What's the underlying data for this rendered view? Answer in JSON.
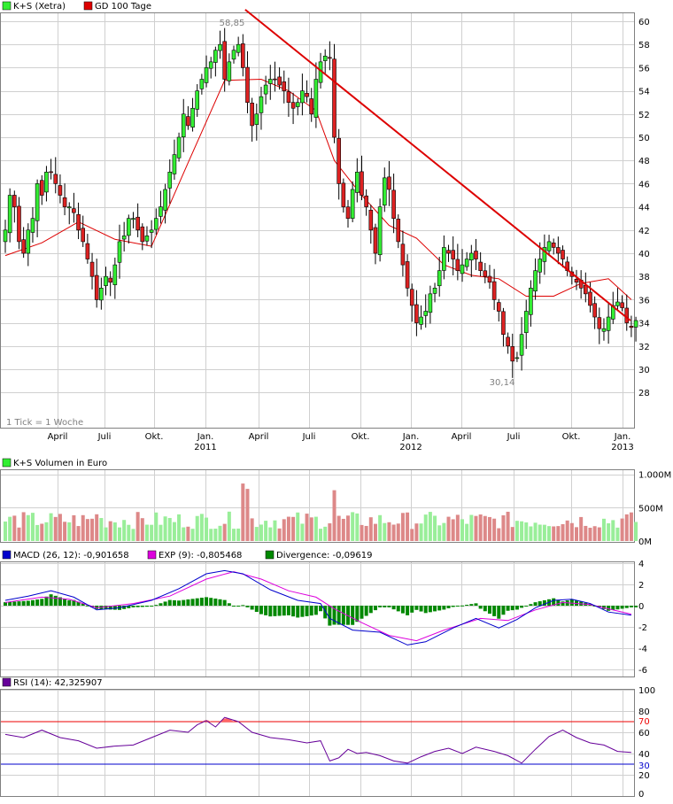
{
  "colors": {
    "candle_up": "#33ee33",
    "candle_down": "#dd2222",
    "wick": "#000000",
    "sma": "#dd0000",
    "trendline": "#dd0000",
    "vol_up": "#99ee99",
    "vol_down": "#dd8888",
    "macd": "#0000cc",
    "signal": "#dd00dd",
    "divergence": "#008800",
    "rsi": "#660099",
    "rsi_upper": "#ee0000",
    "rsi_lower": "#0000cc",
    "rsi_overbought_fill": "#ff6666",
    "grid": "#d0d0d0"
  },
  "x_axis": {
    "months": [
      {
        "label": "April",
        "year": ""
      },
      {
        "label": "Juli",
        "year": ""
      },
      {
        "label": "Okt.",
        "year": ""
      },
      {
        "label": "Jan.",
        "year": "2011"
      },
      {
        "label": "April",
        "year": ""
      },
      {
        "label": "Juli",
        "year": ""
      },
      {
        "label": "Okt.",
        "year": ""
      },
      {
        "label": "Jan.",
        "year": "2012"
      },
      {
        "label": "April",
        "year": ""
      },
      {
        "label": "Juli",
        "year": ""
      },
      {
        "label": "Okt.",
        "year": ""
      },
      {
        "label": "Jan.",
        "year": "2013"
      }
    ]
  },
  "price_panel": {
    "legend": [
      {
        "color": "#33ee33",
        "label": "K+S (Xetra)"
      },
      {
        "color": "#dd0000",
        "label": "GD 100 Tage"
      }
    ],
    "note": "1 Tick = 1 Woche",
    "high_label": "58,85",
    "low_label": "30,14",
    "ticks": [
      "60",
      "58",
      "56",
      "54",
      "52",
      "50",
      "48",
      "46",
      "44",
      "42",
      "40",
      "38",
      "36",
      "34",
      "32",
      "30",
      "28"
    ]
  },
  "volume_panel": {
    "legend": [
      {
        "color": "#33ee33",
        "label": "K+S Volumen in Euro"
      }
    ],
    "ticks": [
      "1.000M",
      "500M",
      "0M"
    ]
  },
  "macd_panel": {
    "legend": [
      {
        "color": "#0000cc",
        "label": "MACD (26, 12): -0,901658"
      },
      {
        "color": "#dd00dd",
        "label": "EXP (9): -0,805468"
      },
      {
        "color": "#008800",
        "label": "Divergence: -0,09619"
      }
    ],
    "ticks": [
      "4",
      "2",
      "0",
      "-2",
      "-4",
      "-6"
    ]
  },
  "rsi_panel": {
    "legend": [
      {
        "color": "#660099",
        "label": "RSI (14): 42,325907"
      }
    ],
    "ticks": [
      "100",
      "80",
      "70",
      "60",
      "40",
      "30",
      "20",
      "0"
    ],
    "overbought": 70,
    "oversold": 30
  },
  "chart_data": {
    "type": "candlestick",
    "interval": "weekly",
    "x_range": [
      "2010-03",
      "2013-01"
    ],
    "price": {
      "ylim": [
        26.8,
        61
      ],
      "closes": [
        42,
        45,
        44,
        41,
        40,
        42,
        43,
        46,
        45,
        47,
        47,
        46,
        45,
        44,
        44,
        43.5,
        42,
        41,
        39.5,
        38,
        36,
        37,
        38,
        37.5,
        39,
        41,
        41.5,
        43,
        43,
        42,
        41,
        41.5,
        42,
        43,
        44,
        45.5,
        47,
        48.5,
        50,
        52,
        51,
        52.5,
        54,
        55,
        56,
        56.5,
        57.5,
        58,
        55,
        56.5,
        57.5,
        58,
        56,
        53,
        51,
        52,
        53.5,
        54.5,
        55,
        55,
        54.5,
        54,
        53,
        52.5,
        53,
        54,
        53.5,
        52,
        55,
        56.5,
        57,
        56.8,
        50,
        46,
        44,
        43,
        45.5,
        47,
        45,
        44,
        42,
        40,
        44,
        46.5,
        45.5,
        43,
        41,
        39,
        37,
        35.5,
        34,
        34.5,
        35,
        36.5,
        37,
        38.5,
        40.5,
        40,
        39.5,
        38.5,
        39,
        39.5,
        40,
        39.5,
        38.5,
        38,
        37.5,
        36,
        35,
        33,
        32,
        30.7,
        31,
        33,
        35,
        37,
        38.5,
        39.5,
        40.5,
        41,
        40.5,
        40,
        39.5,
        38.5,
        38,
        37.5,
        37,
        36.5,
        35.5,
        34.5,
        33.5,
        33.5,
        34.5,
        35.5,
        35.8,
        35.3,
        34,
        33.6,
        34.2
      ],
      "sma100_points": [
        [
          0,
          39.8
        ],
        [
          8,
          40.9
        ],
        [
          16,
          42.7
        ],
        [
          24,
          41.2
        ],
        [
          32,
          40.6
        ],
        [
          40,
          47.8
        ],
        [
          48,
          54.9
        ],
        [
          56,
          55
        ],
        [
          62,
          54
        ],
        [
          68,
          52.3
        ],
        [
          72,
          48
        ],
        [
          78,
          45
        ],
        [
          84,
          42.4
        ],
        [
          90,
          41.3
        ],
        [
          96,
          39
        ],
        [
          102,
          38.1
        ],
        [
          108,
          37.8
        ],
        [
          114,
          36.3
        ],
        [
          120,
          36.3
        ],
        [
          126,
          37.4
        ],
        [
          132,
          37.8
        ],
        [
          137,
          36
        ]
      ],
      "trendline_points": [
        [
          52.5,
          61
        ],
        [
          67.5,
          57
        ],
        [
          136.8,
          34.2
        ]
      ],
      "high_annotation": 58.85,
      "low_annotation": 30.14
    },
    "volume": {
      "ylim": [
        0,
        1000
      ],
      "unit": "Mio. Euro"
    },
    "macd": {
      "ylim": [
        -6.5,
        4
      ],
      "macd_points": [
        [
          0,
          0.5
        ],
        [
          5,
          0.9
        ],
        [
          10,
          1.4
        ],
        [
          15,
          0.8
        ],
        [
          20,
          -0.4
        ],
        [
          25,
          -0.2
        ],
        [
          32,
          0.5
        ],
        [
          38,
          1.6
        ],
        [
          44,
          3
        ],
        [
          48,
          3.3
        ],
        [
          52,
          3
        ],
        [
          58,
          1.5
        ],
        [
          64,
          0.5
        ],
        [
          69,
          0.2
        ],
        [
          71,
          -1.2
        ],
        [
          76,
          -2.3
        ],
        [
          82,
          -2.5
        ],
        [
          88,
          -3.7
        ],
        [
          92,
          -3.4
        ],
        [
          98,
          -2.1
        ],
        [
          103,
          -1.2
        ],
        [
          108,
          -2.1
        ],
        [
          112,
          -1.3
        ],
        [
          116,
          -0.2
        ],
        [
          120,
          0.5
        ],
        [
          124,
          0.6
        ],
        [
          128,
          0.2
        ],
        [
          132,
          -0.6
        ],
        [
          137,
          -0.9
        ]
      ],
      "signal_points": [
        [
          0,
          0.3
        ],
        [
          8,
          0.8
        ],
        [
          14,
          0.6
        ],
        [
          20,
          -0.2
        ],
        [
          28,
          0.2
        ],
        [
          36,
          0.9
        ],
        [
          44,
          2.5
        ],
        [
          50,
          3.2
        ],
        [
          56,
          2.5
        ],
        [
          62,
          1.4
        ],
        [
          68,
          0.8
        ],
        [
          72,
          -0.3
        ],
        [
          78,
          -1.6
        ],
        [
          84,
          -2.8
        ],
        [
          90,
          -3.3
        ],
        [
          96,
          -2.3
        ],
        [
          104,
          -1.2
        ],
        [
          110,
          -1.4
        ],
        [
          116,
          -0.4
        ],
        [
          122,
          0.3
        ],
        [
          128,
          0.1
        ],
        [
          132,
          -0.3
        ],
        [
          137,
          -0.8
        ]
      ]
    },
    "rsi": {
      "ylim": [
        0,
        100
      ],
      "points": [
        [
          0,
          58
        ],
        [
          4,
          55
        ],
        [
          8,
          62
        ],
        [
          12,
          55
        ],
        [
          16,
          52
        ],
        [
          20,
          45
        ],
        [
          24,
          47
        ],
        [
          28,
          48
        ],
        [
          32,
          55
        ],
        [
          36,
          62
        ],
        [
          40,
          60
        ],
        [
          42,
          67
        ],
        [
          44,
          71
        ],
        [
          46,
          65
        ],
        [
          48,
          74
        ],
        [
          51,
          70
        ],
        [
          54,
          60
        ],
        [
          58,
          55
        ],
        [
          62,
          53
        ],
        [
          66,
          50
        ],
        [
          69,
          52
        ],
        [
          71,
          33
        ],
        [
          73,
          36
        ],
        [
          75,
          44
        ],
        [
          77,
          40
        ],
        [
          79,
          41
        ],
        [
          82,
          38
        ],
        [
          85,
          33
        ],
        [
          88,
          31
        ],
        [
          91,
          37
        ],
        [
          94,
          42
        ],
        [
          97,
          45
        ],
        [
          100,
          40
        ],
        [
          103,
          46
        ],
        [
          107,
          42
        ],
        [
          110,
          38
        ],
        [
          113,
          31
        ],
        [
          116,
          44
        ],
        [
          119,
          56
        ],
        [
          122,
          62
        ],
        [
          125,
          55
        ],
        [
          128,
          50
        ],
        [
          131,
          48
        ],
        [
          134,
          42
        ],
        [
          137,
          41
        ]
      ]
    }
  }
}
